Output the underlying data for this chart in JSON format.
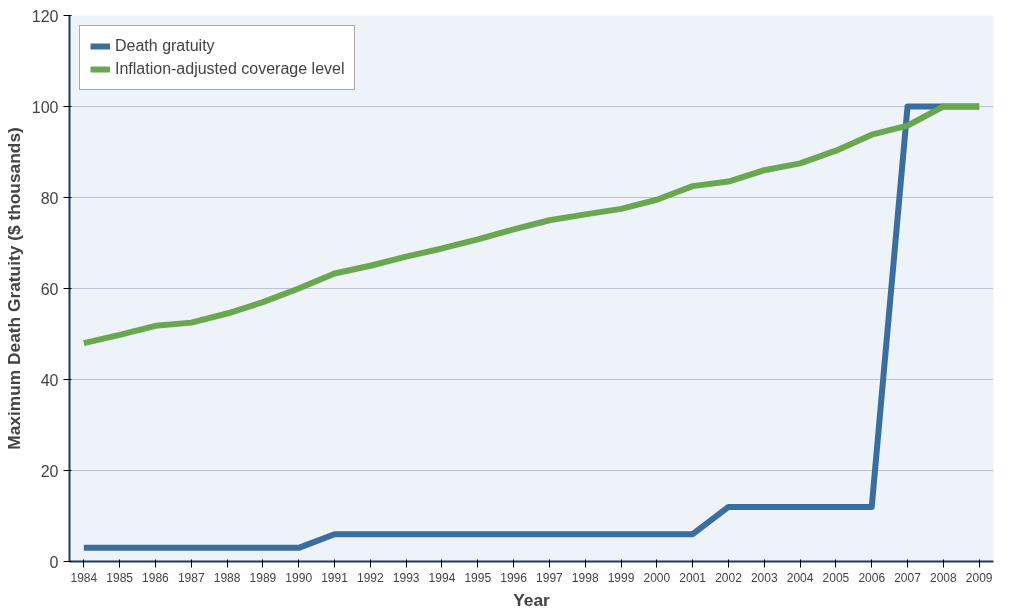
{
  "chart_data": {
    "type": "line",
    "xlabel": "Year",
    "ylabel": "Maximum Death Gratuity ($ thousands)",
    "x": [
      1984,
      1985,
      1986,
      1987,
      1988,
      1989,
      1990,
      1991,
      1992,
      1993,
      1994,
      1995,
      1996,
      1997,
      1998,
      1999,
      2000,
      2001,
      2002,
      2003,
      2004,
      2005,
      2006,
      2007,
      2008,
      2009
    ],
    "series": [
      {
        "name": "Death gratuity",
        "color": "#3a6e9e",
        "values": [
          3,
          3,
          3,
          3,
          3,
          3,
          3,
          6,
          6,
          6,
          6,
          6,
          6,
          6,
          6,
          6,
          6,
          6,
          12,
          12,
          12,
          12,
          12,
          100,
          100,
          100
        ]
      },
      {
        "name": "Inflation-adjusted coverage level",
        "color": "#6aa84f",
        "values": [
          48,
          49.8,
          51.8,
          52.5,
          54.5,
          57,
          60,
          63.3,
          65,
          67,
          68.8,
          70.8,
          73,
          75,
          76.3,
          77.5,
          79.5,
          82.5,
          83.5,
          86,
          87.5,
          90.3,
          93.8,
          95.8,
          100,
          100
        ]
      }
    ],
    "xlim": [
      1983.6,
      2009.4
    ],
    "xticks": [
      1984,
      1985,
      1986,
      1987,
      1988,
      1989,
      1990,
      1991,
      1992,
      1993,
      1994,
      1995,
      1996,
      1997,
      1998,
      1999,
      2000,
      2001,
      2002,
      2003,
      2004,
      2005,
      2006,
      2007,
      2008,
      2009
    ],
    "ylim": [
      0,
      120
    ],
    "yticks": [
      0,
      20,
      40,
      60,
      80,
      100,
      120
    ],
    "grid": "y",
    "legend": "top left",
    "line_style": "solid",
    "marker": "none"
  }
}
